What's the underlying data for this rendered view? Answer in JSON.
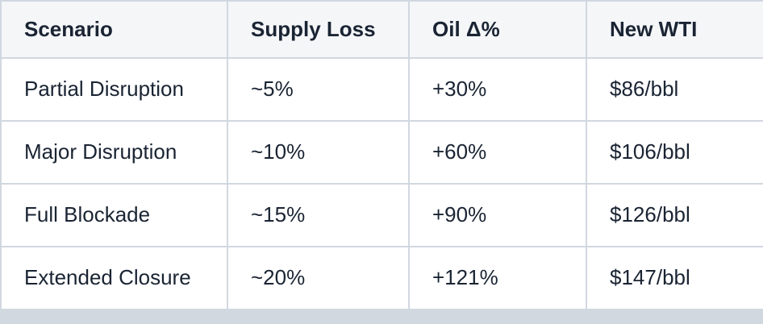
{
  "colors": {
    "border": "#d2d8e0",
    "header_bg": "#f4f6f8",
    "row_bg": "#ffffff",
    "text": "#1a2433"
  },
  "chart_data": {
    "type": "table",
    "title": "",
    "columns": [
      "Scenario",
      "Supply Loss",
      "Oil Δ%",
      "New WTI"
    ],
    "rows": [
      [
        "Partial Disruption",
        "~5%",
        "+30%",
        "$86/bbl"
      ],
      [
        "Major Disruption",
        "~10%",
        "+60%",
        "$106/bbl"
      ],
      [
        "Full Blockade",
        "~15%",
        "+90%",
        "$126/bbl"
      ],
      [
        "Extended Closure",
        "~20%",
        "+121%",
        "$147/bbl"
      ]
    ],
    "notes": {
      "supply_loss_values_pct": [
        5,
        10,
        15,
        20
      ],
      "oil_delta_values_pct": [
        30,
        60,
        90,
        121
      ],
      "new_wti_values_usd_per_bbl": [
        86,
        106,
        126,
        147
      ]
    }
  }
}
